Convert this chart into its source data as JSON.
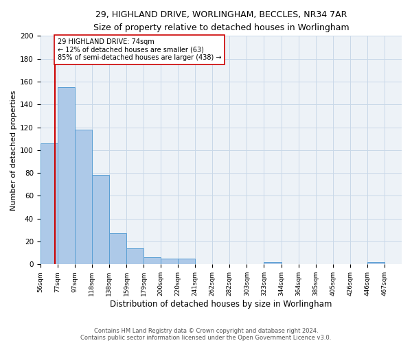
{
  "title": "29, HIGHLAND DRIVE, WORLINGHAM, BECCLES, NR34 7AR",
  "subtitle": "Size of property relative to detached houses in Worlingham",
  "xlabel": "Distribution of detached houses by size in Worlingham",
  "ylabel": "Number of detached properties",
  "bin_labels": [
    "56sqm",
    "77sqm",
    "97sqm",
    "118sqm",
    "138sqm",
    "159sqm",
    "179sqm",
    "200sqm",
    "220sqm",
    "241sqm",
    "262sqm",
    "282sqm",
    "303sqm",
    "323sqm",
    "344sqm",
    "364sqm",
    "385sqm",
    "405sqm",
    "426sqm",
    "446sqm",
    "467sqm"
  ],
  "bar_heights": [
    106,
    155,
    118,
    78,
    27,
    14,
    6,
    5,
    5,
    0,
    0,
    0,
    0,
    2,
    0,
    0,
    0,
    0,
    0,
    2,
    0
  ],
  "bar_color": "#adc9e8",
  "bar_edge_color": "#5a9fd4",
  "property_line_color": "#cc0000",
  "annotation_line1": "29 HIGHLAND DRIVE: 74sqm",
  "annotation_line2": "← 12% of detached houses are smaller (63)",
  "annotation_line3": "85% of semi-detached houses are larger (438) →",
  "annotation_box_color": "#ffffff",
  "annotation_box_edge": "#cc0000",
  "ylim": [
    0,
    200
  ],
  "yticks": [
    0,
    20,
    40,
    60,
    80,
    100,
    120,
    140,
    160,
    180,
    200
  ],
  "grid_color": "#c8d8e8",
  "background_color": "#edf2f7",
  "footer_line1": "Contains HM Land Registry data © Crown copyright and database right 2024.",
  "footer_line2": "Contains public sector information licensed under the Open Government Licence v3.0."
}
